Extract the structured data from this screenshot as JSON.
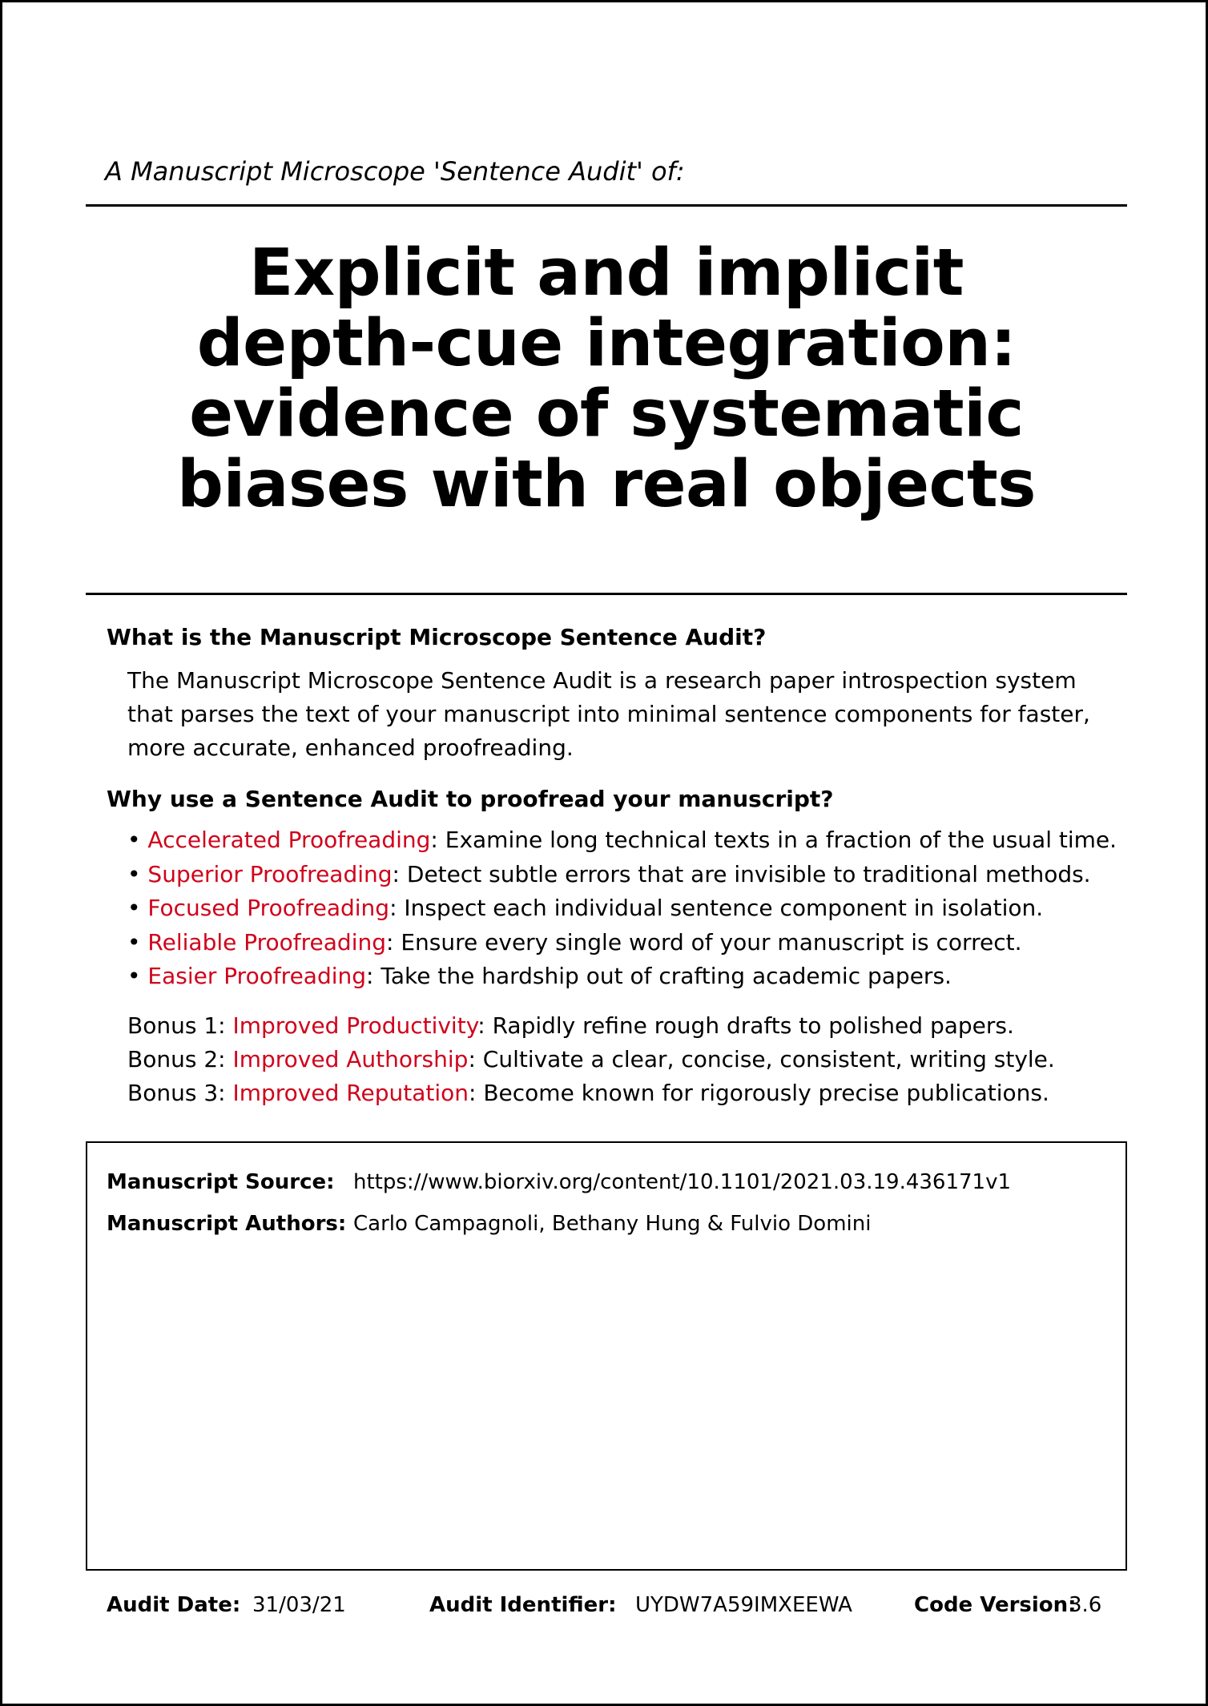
{
  "kicker": "A Manuscript Microscope 'Sentence Audit' of:",
  "title_lines": [
    "Explicit and implicit",
    "depth-cue integration:",
    "evidence of systematic",
    "biases with real objects"
  ],
  "section1": {
    "heading": "What is the Manuscript Microscope Sentence Audit?",
    "lines": [
      "The Manuscript Microscope Sentence Audit is a research paper introspection system",
      "that parses the text of your manuscript into minimal sentence components for faster,",
      "more accurate, enhanced proofreading."
    ]
  },
  "section2": {
    "heading": "Why use a Sentence Audit to proofread your manuscript?",
    "bullet_char": "•",
    "bullets": [
      {
        "term": "Accelerated Proofreading",
        "desc": ": Examine long technical texts in a fraction of the usual time."
      },
      {
        "term": "Superior Proofreading",
        "desc": ": Detect subtle errors that are invisible to traditional methods."
      },
      {
        "term": "Focused Proofreading",
        "desc": ": Inspect each individual sentence component in isolation."
      },
      {
        "term": "Reliable Proofreading",
        "desc": ": Ensure every single word of your manuscript is correct."
      },
      {
        "term": "Easier Proofreading",
        "desc": ": Take the hardship out of crafting academic papers."
      }
    ],
    "bonuses": [
      {
        "prefix": "Bonus 1: ",
        "term": "Improved Productivity",
        "desc": ": Rapidly refine rough drafts to polished papers."
      },
      {
        "prefix": "Bonus 2: ",
        "term": "Improved Authorship",
        "desc": ": Cultivate a clear, concise, consistent, writing style."
      },
      {
        "prefix": "Bonus 3: ",
        "term": "Improved Reputation",
        "desc": ": Become known for rigorously precise publications."
      }
    ]
  },
  "manuscript": {
    "source_label": "Manuscript Source:",
    "source_value": "https://www.biorxiv.org/content/10.1101/2021.03.19.436171v1",
    "authors_label": "Manuscript Authors:",
    "authors_value": "Carlo Campagnoli, Bethany Hung & Fulvio Domini"
  },
  "footer": {
    "date_label": "Audit Date:",
    "date_value": "31/03/21",
    "id_label": "Audit Identifier:",
    "id_value": "UYDW7A59IMXEEWA",
    "version_label": "Code Version:",
    "version_value": "3.6"
  },
  "colors": {
    "accent_red": "#d0021b",
    "text": "#000000",
    "background": "#ffffff"
  }
}
